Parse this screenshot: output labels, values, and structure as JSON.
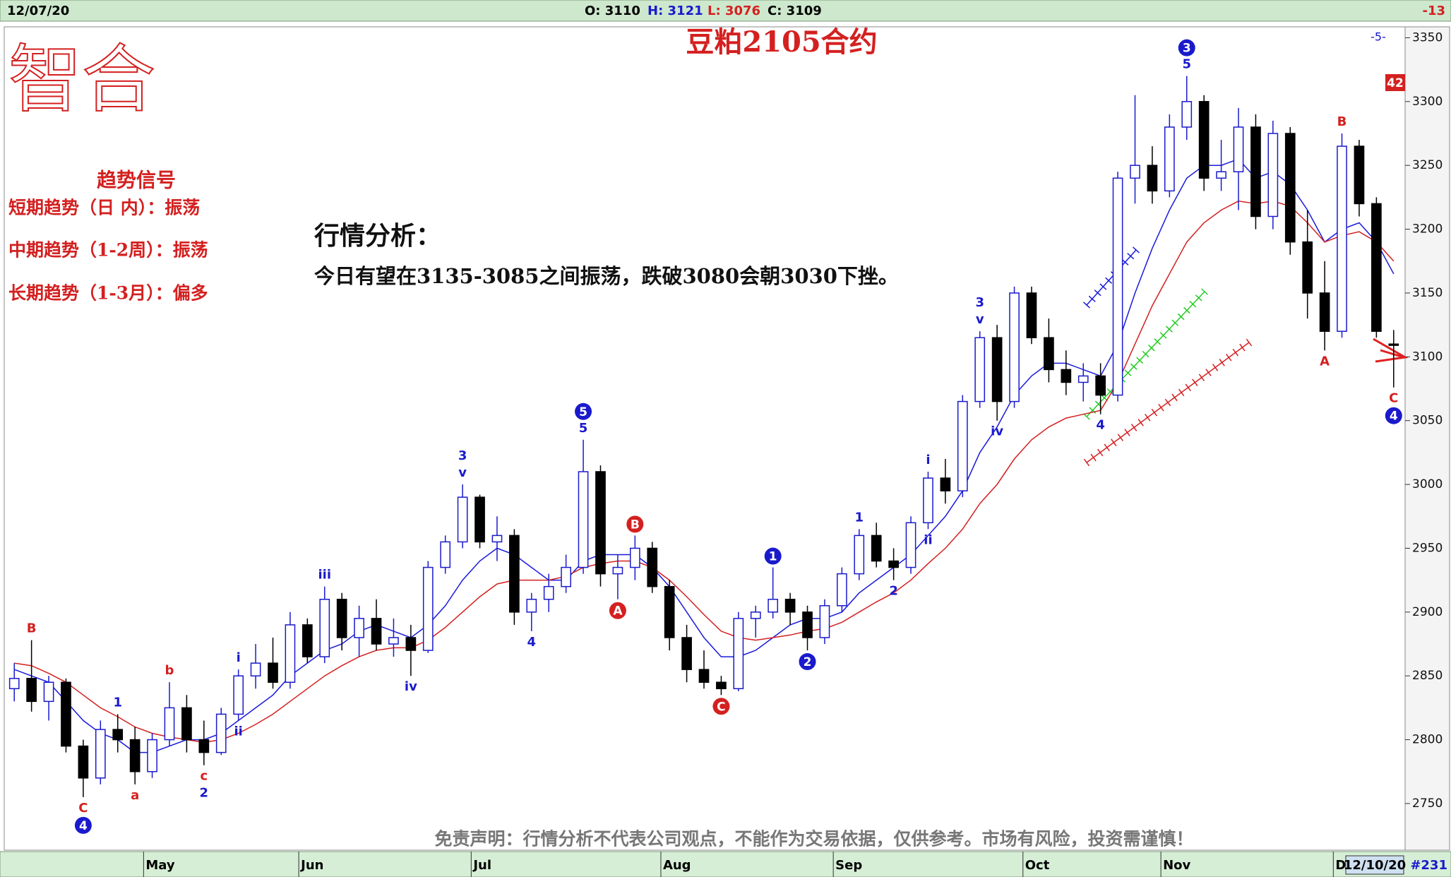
{
  "header": {
    "date": "12/07/20",
    "open": "O: 3110",
    "high": "H: 3121",
    "low": "L: 3076",
    "close": "C: 3109",
    "change": "-13"
  },
  "page": {
    "logo": "智合",
    "signal_title": "趋势信号",
    "signals": [
      "短期趋势（日 内）：振荡",
      "中期趋势（1-2周）：振荡",
      "长期趋势（1-3月）：偏多"
    ],
    "analysis_title": "行情分析：",
    "analysis_text": "今日有望在3135-3085之间振荡，跌破3080会朝3030下挫。",
    "disclaimer": "免责声明：行情分析不代表公司观点，不能作为交易依据，仅供参考。市场有风险，投资需谨慎！",
    "cycle_label": "-5-",
    "badge": "42",
    "end_date": "12/10/20",
    "bar_count": "#231"
  },
  "chart_data": {
    "type": "candlestick",
    "title": "豆粕2105合约",
    "categories": [
      null,
      null,
      null,
      null,
      null,
      null,
      null,
      null,
      "May",
      null,
      null,
      null,
      null,
      null,
      null,
      null,
      null,
      "Jun",
      null,
      null,
      null,
      null,
      null,
      null,
      null,
      null,
      null,
      "Jul",
      null,
      null,
      null,
      null,
      null,
      null,
      null,
      null,
      null,
      null,
      "Aug",
      null,
      null,
      null,
      null,
      null,
      null,
      null,
      null,
      null,
      "Sep",
      null,
      null,
      null,
      null,
      null,
      null,
      null,
      null,
      null,
      null,
      "Oct",
      null,
      null,
      null,
      null,
      null,
      null,
      null,
      "Nov",
      null,
      null,
      null,
      null,
      null,
      null,
      null,
      null,
      null,
      "D",
      null,
      null,
      null
    ],
    "open": [
      2840,
      2848,
      2830,
      2845,
      2795,
      2770,
      2808,
      2800,
      2775,
      2800,
      2825,
      2800,
      2790,
      2820,
      2850,
      2860,
      2845,
      2890,
      2865,
      2910,
      2880,
      2895,
      2875,
      2880,
      2870,
      2935,
      2955,
      2990,
      2955,
      2960,
      2900,
      2910,
      2920,
      2935,
      3010,
      2930,
      2935,
      2950,
      2920,
      2880,
      2855,
      2845,
      2840,
      2895,
      2900,
      2910,
      2900,
      2880,
      2905,
      2930,
      2960,
      2940,
      2935,
      2970,
      3005,
      2995,
      3065,
      3115,
      3065,
      3150,
      3115,
      3090,
      3080,
      3085,
      3070,
      3240,
      3250,
      3230,
      3280,
      3300,
      3240,
      3245,
      3280,
      3210,
      3275,
      3190,
      3150,
      3120,
      3265,
      3220,
      3110
    ],
    "high": [
      2860,
      2878,
      2850,
      2848,
      2800,
      2815,
      2820,
      2810,
      2805,
      2845,
      2835,
      2815,
      2825,
      2855,
      2875,
      2880,
      2900,
      2895,
      2920,
      2915,
      2905,
      2910,
      2895,
      2890,
      2940,
      2960,
      3000,
      2992,
      2975,
      2965,
      2915,
      2930,
      2945,
      3035,
      3015,
      2945,
      2960,
      2955,
      2925,
      2890,
      2870,
      2850,
      2900,
      2905,
      2935,
      2915,
      2905,
      2910,
      2935,
      2965,
      2970,
      2950,
      2975,
      3010,
      3020,
      3070,
      3120,
      3125,
      3155,
      3155,
      3130,
      3105,
      3095,
      3095,
      3245,
      3305,
      3265,
      3290,
      3320,
      3305,
      3270,
      3295,
      3290,
      3285,
      3280,
      3215,
      3175,
      3275,
      3270,
      3225,
      3121
    ],
    "low": [
      2830,
      2822,
      2815,
      2790,
      2755,
      2765,
      2790,
      2765,
      2770,
      2795,
      2790,
      2780,
      2788,
      2815,
      2840,
      2840,
      2840,
      2860,
      2860,
      2870,
      2865,
      2870,
      2865,
      2850,
      2868,
      2930,
      2950,
      2950,
      2940,
      2890,
      2885,
      2900,
      2915,
      2930,
      2920,
      2910,
      2925,
      2915,
      2870,
      2845,
      2840,
      2835,
      2838,
      2880,
      2895,
      2890,
      2870,
      2875,
      2900,
      2925,
      2935,
      2925,
      2930,
      2965,
      2985,
      2990,
      3060,
      3050,
      3060,
      3110,
      3080,
      3070,
      3065,
      3055,
      3065,
      3220,
      3220,
      3225,
      3270,
      3230,
      3230,
      3215,
      3200,
      3200,
      3180,
      3130,
      3105,
      3115,
      3210,
      3115,
      3076
    ],
    "close": [
      2848,
      2830,
      2845,
      2795,
      2770,
      2808,
      2800,
      2775,
      2800,
      2825,
      2800,
      2790,
      2820,
      2850,
      2860,
      2845,
      2890,
      2865,
      2910,
      2880,
      2895,
      2875,
      2880,
      2870,
      2935,
      2955,
      2990,
      2955,
      2960,
      2900,
      2910,
      2920,
      2935,
      3010,
      2930,
      2935,
      2950,
      2920,
      2880,
      2855,
      2845,
      2840,
      2895,
      2900,
      2910,
      2900,
      2880,
      2905,
      2930,
      2960,
      2940,
      2935,
      2970,
      3005,
      2995,
      3065,
      3115,
      3065,
      3150,
      3115,
      3090,
      3080,
      3085,
      3070,
      3240,
      3250,
      3230,
      3280,
      3300,
      3240,
      3245,
      3280,
      3210,
      3275,
      3190,
      3150,
      3120,
      3265,
      3220,
      3120,
      3109
    ],
    "up_color": "#1a1acc",
    "down_color": "#000000",
    "moving_averages": [
      {
        "color": "#1a1adb",
        "values": [
          2855,
          2850,
          2845,
          2830,
          2815,
          2805,
          2800,
          2790,
          2790,
          2795,
          2800,
          2800,
          2805,
          2815,
          2825,
          2835,
          2850,
          2860,
          2870,
          2875,
          2885,
          2890,
          2885,
          2880,
          2890,
          2905,
          2925,
          2940,
          2950,
          2945,
          2935,
          2925,
          2925,
          2940,
          2945,
          2945,
          2945,
          2935,
          2920,
          2900,
          2880,
          2865,
          2865,
          2870,
          2880,
          2890,
          2895,
          2895,
          2900,
          2915,
          2925,
          2935,
          2945,
          2960,
          2975,
          2995,
          3025,
          3045,
          3070,
          3085,
          3095,
          3095,
          3090,
          3085,
          3110,
          3150,
          3185,
          3215,
          3240,
          3250,
          3250,
          3255,
          3240,
          3245,
          3235,
          3215,
          3190,
          3200,
          3205,
          3190,
          3165
        ]
      },
      {
        "color": "#d42020",
        "values": [
          2860,
          2858,
          2852,
          2845,
          2835,
          2825,
          2818,
          2810,
          2805,
          2802,
          2800,
          2798,
          2800,
          2805,
          2812,
          2820,
          2830,
          2840,
          2850,
          2858,
          2865,
          2870,
          2872,
          2872,
          2878,
          2888,
          2900,
          2912,
          2922,
          2925,
          2925,
          2925,
          2928,
          2935,
          2938,
          2940,
          2940,
          2935,
          2925,
          2912,
          2898,
          2885,
          2880,
          2878,
          2880,
          2882,
          2885,
          2887,
          2892,
          2900,
          2908,
          2915,
          2925,
          2938,
          2950,
          2965,
          2985,
          3000,
          3020,
          3035,
          3045,
          3052,
          3055,
          3058,
          3080,
          3110,
          3140,
          3165,
          3190,
          3205,
          3215,
          3222,
          3220,
          3222,
          3218,
          3205,
          3190,
          3195,
          3198,
          3190,
          3175
        ]
      }
    ],
    "ylim": [
      2714,
      3358
    ],
    "yticks": [
      2750,
      2800,
      2850,
      2900,
      2950,
      3000,
      3050,
      3100,
      3150,
      3200,
      3250,
      3300,
      3350
    ],
    "annotations": [
      {
        "bar": 1,
        "side": "above",
        "labels": [
          {
            "text": "B",
            "color": "#d42020",
            "circled": false
          }
        ]
      },
      {
        "bar": 4,
        "side": "below",
        "labels": [
          {
            "text": "C",
            "color": "#d42020",
            "circled": false
          },
          {
            "text": "4",
            "color": "#1a1acc",
            "circled": true
          }
        ]
      },
      {
        "bar": 6,
        "side": "above",
        "labels": [
          {
            "text": "1",
            "color": "#1a1acc",
            "circled": false
          }
        ]
      },
      {
        "bar": 7,
        "side": "below",
        "labels": [
          {
            "text": "a",
            "color": "#d42020",
            "circled": false
          }
        ]
      },
      {
        "bar": 9,
        "side": "above",
        "labels": [
          {
            "text": "b",
            "color": "#d42020",
            "circled": false
          }
        ]
      },
      {
        "bar": 11,
        "side": "below",
        "labels": [
          {
            "text": "c",
            "color": "#d42020",
            "circled": false
          },
          {
            "text": "2",
            "color": "#1a1acc",
            "circled": false
          }
        ]
      },
      {
        "bar": 13,
        "side": "above",
        "labels": [
          {
            "text": "i",
            "color": "#1a1acc",
            "circled": false
          }
        ]
      },
      {
        "bar": 13,
        "side": "below",
        "labels": [
          {
            "text": "ii",
            "color": "#1a1acc",
            "circled": false
          }
        ]
      },
      {
        "bar": 18,
        "side": "above",
        "labels": [
          {
            "text": "iii",
            "color": "#1a1acc",
            "circled": false
          }
        ]
      },
      {
        "bar": 23,
        "side": "below",
        "labels": [
          {
            "text": "iv",
            "color": "#1a1acc",
            "circled": false
          }
        ]
      },
      {
        "bar": 26,
        "side": "above",
        "labels": [
          {
            "text": "3",
            "color": "#1a1acc",
            "circled": false
          },
          {
            "text": "v",
            "color": "#1a1acc",
            "circled": false
          }
        ]
      },
      {
        "bar": 30,
        "side": "below",
        "labels": [
          {
            "text": "4",
            "color": "#1a1acc",
            "circled": false
          }
        ]
      },
      {
        "bar": 33,
        "side": "above",
        "labels": [
          {
            "text": "5",
            "color": "#1a1acc",
            "circled": true
          },
          {
            "text": "5",
            "color": "#1a1acc",
            "circled": false
          }
        ]
      },
      {
        "bar": 35,
        "side": "below",
        "labels": [
          {
            "text": "A",
            "color": "#d42020",
            "circled": true
          }
        ]
      },
      {
        "bar": 36,
        "side": "above",
        "labels": [
          {
            "text": "B",
            "color": "#d42020",
            "circled": true
          }
        ]
      },
      {
        "bar": 41,
        "side": "below",
        "labels": [
          {
            "text": "C",
            "color": "#d42020",
            "circled": true
          }
        ]
      },
      {
        "bar": 44,
        "side": "above",
        "labels": [
          {
            "text": "1",
            "color": "#1a1acc",
            "circled": true
          }
        ]
      },
      {
        "bar": 46,
        "side": "below",
        "labels": [
          {
            "text": "2",
            "color": "#1a1acc",
            "circled": true
          }
        ]
      },
      {
        "bar": 49,
        "side": "above",
        "labels": [
          {
            "text": "1",
            "color": "#1a1acc",
            "circled": false
          }
        ]
      },
      {
        "bar": 51,
        "side": "below",
        "labels": [
          {
            "text": "2",
            "color": "#1a1acc",
            "circled": false
          }
        ]
      },
      {
        "bar": 53,
        "side": "above",
        "labels": [
          {
            "text": "i",
            "color": "#1a1acc",
            "circled": false
          }
        ]
      },
      {
        "bar": 53,
        "side": "below",
        "labels": [
          {
            "text": "ii",
            "color": "#1a1acc",
            "circled": false
          }
        ]
      },
      {
        "bar": 56,
        "side": "above",
        "labels": [
          {
            "text": "3",
            "color": "#1a1acc",
            "circled": false
          },
          {
            "text": "v",
            "color": "#1a1acc",
            "circled": false
          }
        ]
      },
      {
        "bar": 57,
        "side": "below",
        "labels": [
          {
            "text": "iv",
            "color": "#1a1acc",
            "circled": false
          }
        ]
      },
      {
        "bar": 63,
        "side": "below",
        "labels": [
          {
            "text": "4",
            "color": "#1a1acc",
            "circled": false
          }
        ]
      },
      {
        "bar": 68,
        "side": "above",
        "labels": [
          {
            "text": "3",
            "color": "#1a1acc",
            "circled": true
          },
          {
            "text": "5",
            "color": "#1a1acc",
            "circled": false
          }
        ]
      },
      {
        "bar": 76,
        "side": "below",
        "labels": [
          {
            "text": "A",
            "color": "#d42020",
            "circled": false
          }
        ]
      },
      {
        "bar": 77,
        "side": "above",
        "labels": [
          {
            "text": "B",
            "color": "#d42020",
            "circled": false
          }
        ]
      },
      {
        "bar": 80,
        "side": "below",
        "labels": [
          {
            "text": "C",
            "color": "#d42020",
            "circled": false
          },
          {
            "text": "4",
            "color": "#1a1acc",
            "circled": true
          }
        ]
      }
    ]
  }
}
